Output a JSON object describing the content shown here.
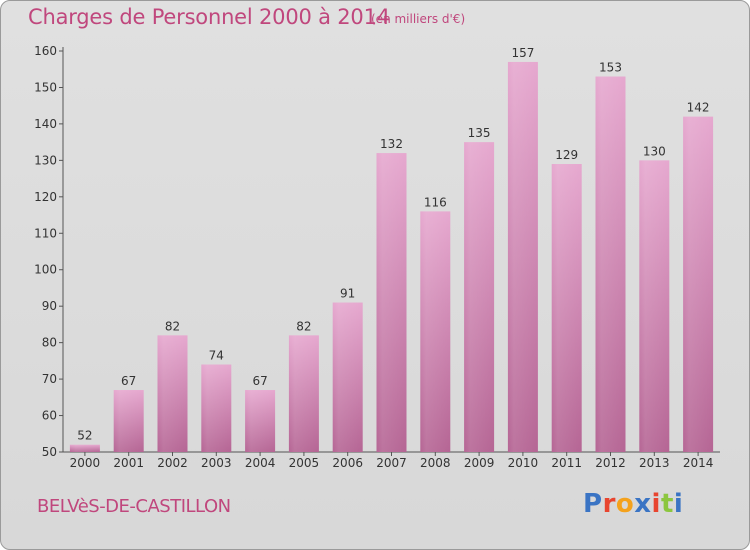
{
  "title": "Charges de Personnel 2000 à 2014",
  "subtitle": "(en milliers d'€)",
  "commune": "BELVèS-DE-CASTILLON",
  "logo": {
    "text": "Proxiti",
    "colors": [
      "#3a74c4",
      "#e8452f",
      "#f4a21d",
      "#3a74c4",
      "#e8452f",
      "#8cc63f",
      "#3a74c4"
    ]
  },
  "colors": {
    "bar": "#d993bf",
    "bar_dark": "#b56594",
    "accent": "#c0477d"
  },
  "chart_data": {
    "type": "bar",
    "title": "Charges de Personnel 2000 à 2014",
    "subtitle": "(en milliers d'€)",
    "categories": [
      "2000",
      "2001",
      "2002",
      "2003",
      "2004",
      "2005",
      "2006",
      "2007",
      "2008",
      "2009",
      "2010",
      "2011",
      "2012",
      "2013",
      "2014"
    ],
    "values": [
      52,
      67,
      82,
      74,
      67,
      82,
      91,
      132,
      116,
      135,
      157,
      129,
      153,
      130,
      142
    ],
    "ylim": [
      50,
      160
    ],
    "yticks": [
      50,
      60,
      70,
      80,
      90,
      100,
      110,
      120,
      130,
      140,
      150,
      160
    ],
    "grid": false,
    "legend": "none"
  }
}
